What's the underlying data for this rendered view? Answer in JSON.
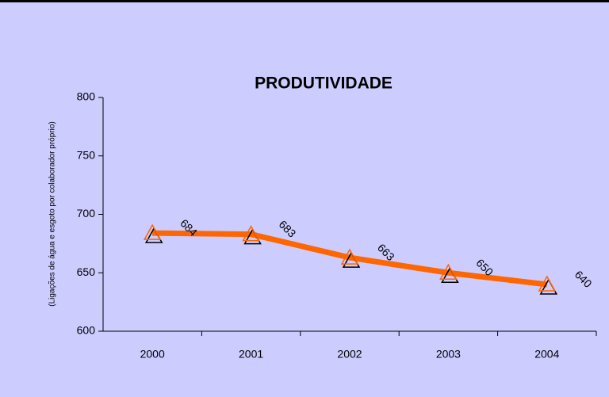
{
  "chart_data": {
    "type": "line",
    "title": "PRODUTIVIDADE",
    "y_label": "(Ligações de água e esgoto por colaborador próprio)",
    "categories": [
      "2000",
      "2001",
      "2002",
      "2003",
      "2004"
    ],
    "series": [
      {
        "name": "Produtividade",
        "color": "#ff6600",
        "values": [
          684,
          683,
          663,
          650,
          640
        ]
      }
    ],
    "ylim": [
      600,
      800
    ],
    "yticks": [
      600,
      650,
      700,
      750,
      800
    ]
  }
}
